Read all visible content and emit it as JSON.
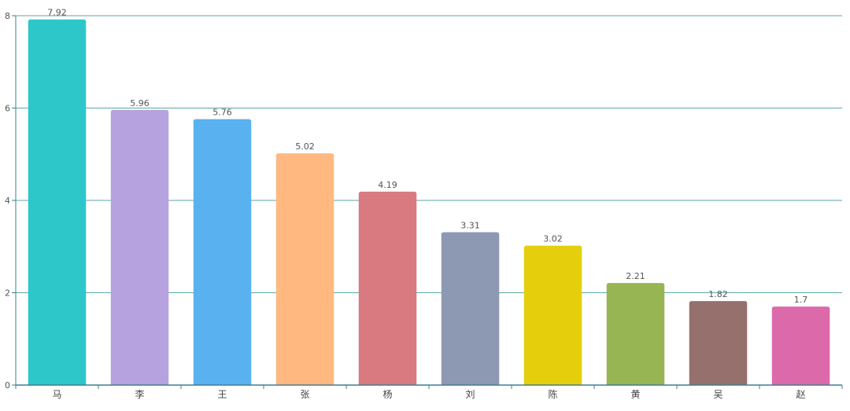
{
  "colors": {
    "grid": "#5ba6a8",
    "axis": "#3f7f92",
    "text": "#555555"
  },
  "chart_data": {
    "type": "bar",
    "categories": [
      "马",
      "李",
      "王",
      "张",
      "杨",
      "刘",
      "陈",
      "黄",
      "吴",
      "赵"
    ],
    "values": [
      7.92,
      5.96,
      5.76,
      5.02,
      4.19,
      3.31,
      3.02,
      2.21,
      1.82,
      1.7
    ],
    "value_labels": [
      "7.92",
      "5.96",
      "5.76",
      "5.02",
      "4.19",
      "3.31",
      "3.02",
      "2.21",
      "1.82",
      "1.7"
    ],
    "bar_colors": [
      "#2ec7c9",
      "#b6a2de",
      "#5ab1ef",
      "#ffb980",
      "#d87a80",
      "#8d98b3",
      "#e5cf0d",
      "#97b552",
      "#95706d",
      "#dc69aa"
    ],
    "ylim": [
      0,
      8
    ],
    "yticks": [
      0,
      2,
      4,
      6,
      8
    ],
    "ytick_labels": [
      "0",
      "2",
      "4",
      "6",
      "8"
    ],
    "grid": true,
    "title": "",
    "xlabel": "",
    "ylabel": ""
  }
}
